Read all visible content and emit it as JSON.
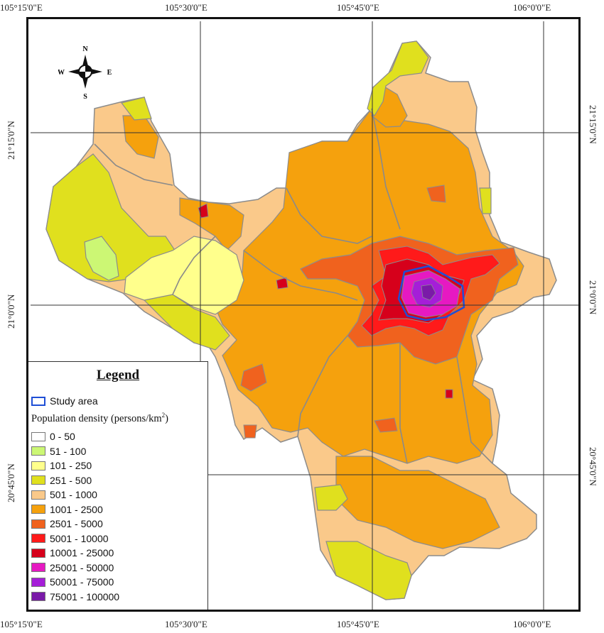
{
  "axes": {
    "top_ticks": [
      "105°15'0\"E",
      "105°30'0\"E",
      "105°45'0\"E",
      "106°0'0\"E"
    ],
    "bottom_ticks": [
      "105°15'0\"E",
      "105°30'0\"E",
      "105°45'0\"E",
      "106°0'0\"E"
    ],
    "left_ticks": [
      "21°15'0\"N",
      "21°0'0\"N",
      "20°45'0\"N"
    ],
    "right_ticks": [
      "21°15'0\"N",
      "21°0'0\"N",
      "20°45'0\"N"
    ]
  },
  "compass": {
    "n": "N",
    "s": "S",
    "e": "E",
    "w": "W"
  },
  "legend": {
    "title": "Legend",
    "study_area_label": "Study area",
    "study_area_color": "#1f4fd6",
    "density_title_prefix": "Population density (persons/km",
    "density_title_sup": "2",
    "density_title_suffix": ")",
    "classes": [
      {
        "label": "0 - 50",
        "color": "#ffffff"
      },
      {
        "label": "51 - 100",
        "color": "#ccf774"
      },
      {
        "label": "101 - 250",
        "color": "#ffff8c"
      },
      {
        "label": "251 - 500",
        "color": "#e0e01e"
      },
      {
        "label": "501 - 1000",
        "color": "#fac98a"
      },
      {
        "label": "1001 - 2500",
        "color": "#f5a10d"
      },
      {
        "label": "2501 - 5000",
        "color": "#f0621e"
      },
      {
        "label": "5001 - 10000",
        "color": "#ff1a1a"
      },
      {
        "label": "10001 - 25000",
        "color": "#d6001b"
      },
      {
        "label": "25001 - 50000",
        "color": "#e619c2"
      },
      {
        "label": "50001 - 75000",
        "color": "#a51ed8"
      },
      {
        "label": "75001 - 100000",
        "color": "#7a1aa8"
      }
    ]
  }
}
